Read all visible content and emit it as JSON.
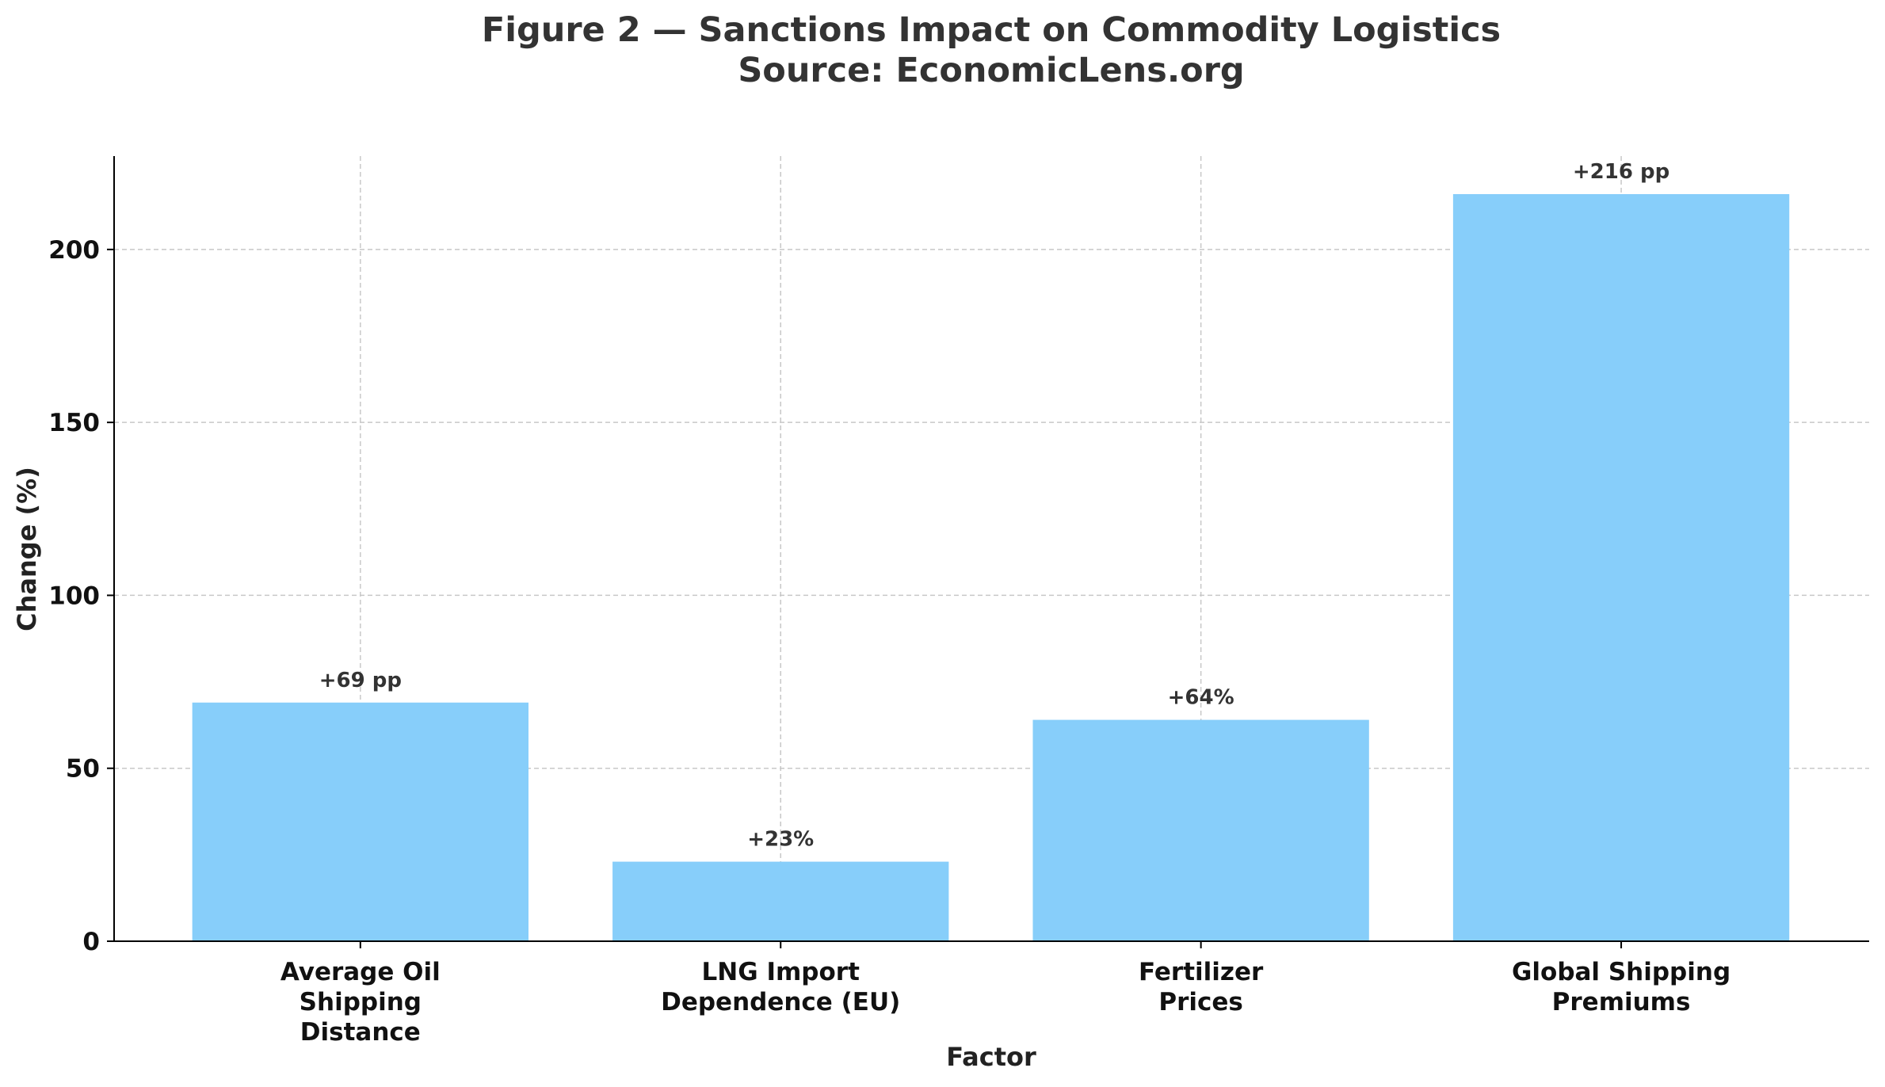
{
  "chart_data": {
    "type": "bar",
    "title": "Figure 2 — Sanctions Impact on Commodity Logistics",
    "subtitle": "Source: EconomicLens.org",
    "xlabel": "Factor",
    "ylabel": "Change (%)",
    "categories": [
      [
        "Average Oil",
        "Shipping",
        "Distance"
      ],
      [
        "LNG Import",
        "Dependence (EU)"
      ],
      [
        "Fertilizer",
        "Prices"
      ],
      [
        "Global Shipping",
        "Premiums"
      ]
    ],
    "values": [
      69,
      23,
      64,
      216
    ],
    "data_labels": [
      "+69 pp",
      "+23%",
      "+64%",
      "+216 pp"
    ],
    "ylim": [
      0,
      227
    ],
    "yticks": [
      0,
      50,
      100,
      150,
      200
    ],
    "grid": true,
    "bar_color": "#87cefa"
  }
}
